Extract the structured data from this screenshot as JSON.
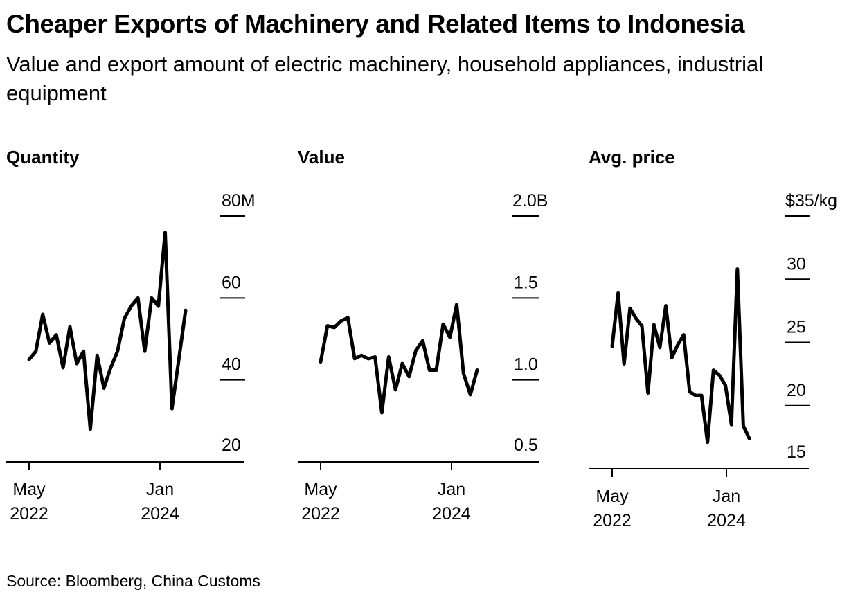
{
  "title": "Cheaper Exports of Machinery and Related Items to Indonesia",
  "subtitle": "Value and export amount of electric machinery, household appliances, industrial equipment",
  "source": "Source: Bloomberg, China Customs",
  "colors": {
    "line": "#000000",
    "background": "#ffffff"
  },
  "chart_data": [
    {
      "type": "line",
      "title": "Quantity",
      "x_tick_labels": [
        [
          "May",
          "2022"
        ],
        [
          "Jan",
          "2024"
        ]
      ],
      "y_tick_labels": [
        "80M",
        "60",
        "40",
        "20"
      ],
      "y_ticks": [
        80,
        60,
        40,
        20
      ],
      "ylim": [
        20,
        80
      ],
      "x": [
        "2022-05",
        "2022-06",
        "2022-07",
        "2022-08",
        "2022-09",
        "2022-10",
        "2022-11",
        "2022-12",
        "2023-01",
        "2023-02",
        "2023-03",
        "2023-04",
        "2023-05",
        "2023-06",
        "2023-07",
        "2023-08",
        "2023-09",
        "2023-10",
        "2023-11",
        "2023-12",
        "2024-01",
        "2024-02",
        "2024-03",
        "2024-04"
      ],
      "values": [
        45,
        47,
        56,
        49,
        51,
        43,
        53,
        44,
        47,
        28,
        46,
        38,
        43,
        47,
        55,
        58,
        60,
        47,
        60,
        58,
        76,
        33,
        45,
        57
      ]
    },
    {
      "type": "line",
      "title": "Value",
      "x_tick_labels": [
        [
          "May",
          "2022"
        ],
        [
          "Jan",
          "2024"
        ]
      ],
      "y_tick_labels": [
        "2.0B",
        "1.5",
        "1.0",
        "0.5"
      ],
      "y_ticks": [
        2.0,
        1.5,
        1.0,
        0.5
      ],
      "ylim": [
        0.5,
        2.0
      ],
      "x": [
        "2022-05",
        "2022-06",
        "2022-07",
        "2022-08",
        "2022-09",
        "2022-10",
        "2022-11",
        "2022-12",
        "2023-01",
        "2023-02",
        "2023-03",
        "2023-04",
        "2023-05",
        "2023-06",
        "2023-07",
        "2023-08",
        "2023-09",
        "2023-10",
        "2023-11",
        "2023-12",
        "2024-01",
        "2024-02",
        "2024-03",
        "2024-04"
      ],
      "values": [
        1.11,
        1.33,
        1.32,
        1.36,
        1.38,
        1.13,
        1.15,
        1.13,
        1.14,
        0.8,
        1.14,
        0.94,
        1.1,
        1.02,
        1.18,
        1.24,
        1.06,
        1.06,
        1.34,
        1.26,
        1.46,
        1.04,
        0.91,
        1.06
      ]
    },
    {
      "type": "line",
      "title": "Avg. price",
      "x_tick_labels": [
        [
          "May",
          "2022"
        ],
        [
          "Jan",
          "2024"
        ]
      ],
      "y_tick_labels": [
        "$35/kg",
        "30",
        "25",
        "20",
        "15"
      ],
      "y_ticks": [
        35,
        30,
        25,
        20,
        15
      ],
      "ylim": [
        15,
        35
      ],
      "x": [
        "2022-05",
        "2022-06",
        "2022-07",
        "2022-08",
        "2022-09",
        "2022-10",
        "2022-11",
        "2022-12",
        "2023-01",
        "2023-02",
        "2023-03",
        "2023-04",
        "2023-05",
        "2023-06",
        "2023-07",
        "2023-08",
        "2023-09",
        "2023-10",
        "2023-11",
        "2023-12",
        "2024-01",
        "2024-02",
        "2024-03",
        "2024-04"
      ],
      "values": [
        24.7,
        28.9,
        23.3,
        27.7,
        26.9,
        26.3,
        21.0,
        26.4,
        24.6,
        27.9,
        23.8,
        24.8,
        25.6,
        21.1,
        20.8,
        20.8,
        17.1,
        22.8,
        22.4,
        21.6,
        18.5,
        30.8,
        18.4,
        17.4
      ]
    }
  ]
}
